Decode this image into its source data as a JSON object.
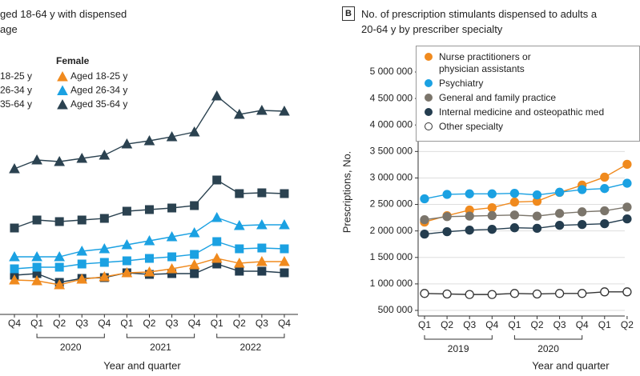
{
  "chart_data": [
    {
      "type": "line",
      "title": "ged 18-64 y with dispensed\nage",
      "categories": [
        "Q4",
        "Q1",
        "Q2",
        "Q3",
        "Q4",
        "Q1",
        "Q2",
        "Q3",
        "Q4",
        "Q1",
        "Q2",
        "Q3",
        "Q4"
      ],
      "groups": [
        {
          "label": "2020",
          "span": [
            1,
            4
          ]
        },
        {
          "label": "2021",
          "span": [
            5,
            8
          ]
        },
        {
          "label": "2022",
          "span": [
            9,
            12
          ]
        }
      ],
      "xlabel": "Year and quarter",
      "ylim": [
        0,
        340
      ],
      "series_groups": [
        {
          "series": [
            {
              "name": "18-25 y",
              "color": "#243d4f",
              "marker": "square",
              "values": [
                56,
                58,
                47,
                52,
                53,
                59,
                57,
                58,
                58,
                70,
                61,
                61,
                59
              ]
            },
            {
              "name": "26-34 y",
              "color": "#1ba1e2",
              "marker": "square",
              "values": [
                64,
                66,
                66,
                70,
                72,
                74,
                77,
                79,
                82,
                98,
                89,
                90,
                89
              ]
            },
            {
              "name": "35-64 y",
              "color": "#2b4250",
              "marker": "square",
              "values": [
                115,
                125,
                123,
                125,
                127,
                136,
                138,
                140,
                143,
                175,
                158,
                159,
                158
              ]
            }
          ]
        },
        {
          "title": "Female",
          "series": [
            {
              "name": "Aged 18-25 y",
              "color": "#f08a1e",
              "marker": "triangle",
              "values": [
                50,
                49,
                44,
                51,
                54,
                59,
                60,
                64,
                69,
                77,
                71,
                73,
                73
              ]
            },
            {
              "name": "Aged 26-34 y",
              "color": "#1ba1e2",
              "marker": "triangle",
              "values": [
                79,
                79,
                79,
                86,
                89,
                94,
                99,
                104,
                109,
                128,
                118,
                119,
                119
              ]
            },
            {
              "name": "Aged 35-64 y",
              "color": "#2b4250",
              "marker": "triangle",
              "values": [
                189,
                200,
                198,
                202,
                206,
                220,
                224,
                229,
                235,
                280,
                257,
                262,
                261
              ]
            }
          ]
        }
      ]
    },
    {
      "type": "line",
      "panel_label": "B",
      "title": "No. of prescription stimulants dispensed to adults a\n20-64 y by prescriber specialty",
      "categories": [
        "Q1",
        "Q2",
        "Q3",
        "Q4",
        "Q1",
        "Q2",
        "Q3",
        "Q4",
        "Q1",
        "Q2"
      ],
      "groups": [
        {
          "label": "2019",
          "span": [
            0,
            3
          ]
        },
        {
          "label": "2020",
          "span": [
            4,
            7
          ]
        }
      ],
      "xlabel": "Year and quarter",
      "ylabel": "Prescriptions, No.",
      "ylim": [
        500000,
        5000000
      ],
      "yticks": [
        {
          "value": 500000,
          "label": "500 000"
        },
        {
          "value": 1000000,
          "label": "1 000 000"
        },
        {
          "value": 1500000,
          "label": "1 500 000"
        },
        {
          "value": 2000000,
          "label": "2 000 000"
        },
        {
          "value": 2500000,
          "label": "2 500 000"
        },
        {
          "value": 3000000,
          "label": "3 000 000"
        },
        {
          "value": 3500000,
          "label": "3 500 000"
        },
        {
          "value": 4000000,
          "label": "4 000 000"
        },
        {
          "value": 4500000,
          "label": "4 500 000"
        },
        {
          "value": 5000000,
          "label": "5 000 000"
        }
      ],
      "grid": true,
      "series_groups": [
        {
          "series": [
            {
              "name": "Nurse practitioners or\nphysician assistants",
              "color": "#f08a1e",
              "marker": "circle",
              "values": [
                2167000,
                2288000,
                2394000,
                2439000,
                2545000,
                2560000,
                2727000,
                2864000,
                3015000,
                3258000
              ]
            },
            {
              "name": "Psychiatry",
              "color": "#1ba1e2",
              "marker": "circle",
              "values": [
                2606000,
                2690000,
                2700000,
                2700000,
                2710000,
                2680000,
                2730000,
                2780000,
                2800000,
                2900000
              ]
            },
            {
              "name": "General and family practice",
              "color": "#7b756b",
              "marker": "circle",
              "values": [
                2212000,
                2270000,
                2280000,
                2290000,
                2300000,
                2280000,
                2330000,
                2360000,
                2380000,
                2450000
              ]
            },
            {
              "name": "Internal medicine and osteopathic med",
              "color": "#243d4f",
              "marker": "circle",
              "values": [
                1940000,
                1985000,
                2015000,
                2030000,
                2060000,
                2050000,
                2106000,
                2121000,
                2136000,
                2227000
              ]
            },
            {
              "name": "Other specialty",
              "color": "#ffffff",
              "edgecolor": "#333333",
              "marker": "circle",
              "values": [
                820000,
                810000,
                800000,
                800000,
                820000,
                810000,
                820000,
                820000,
                850000,
                850000
              ]
            }
          ]
        }
      ]
    }
  ]
}
